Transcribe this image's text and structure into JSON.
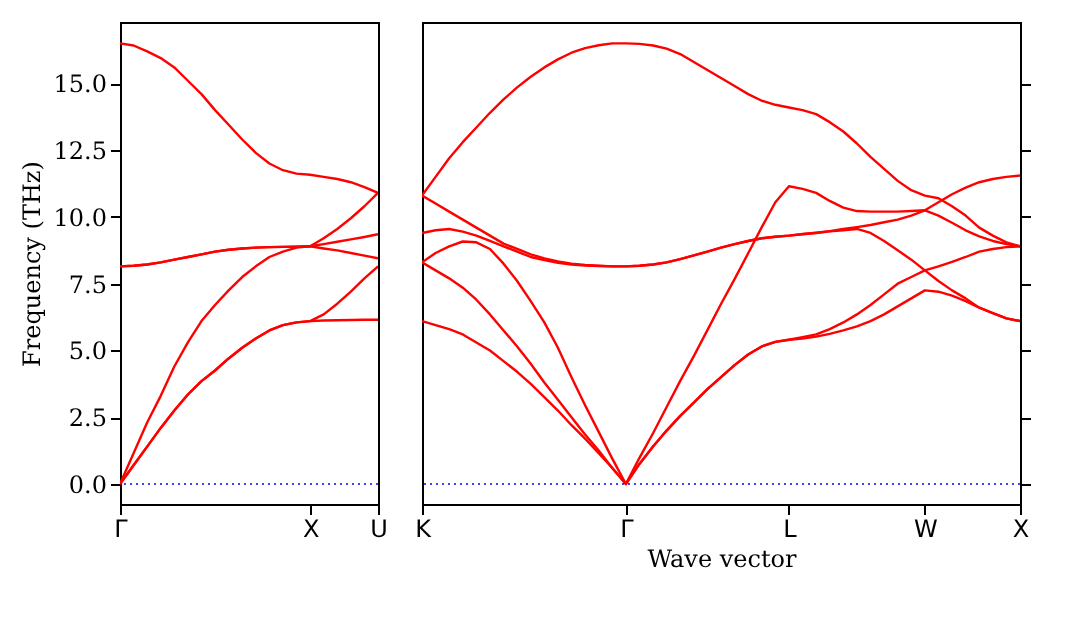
{
  "chart_data": [
    {
      "type": "line",
      "ylabel": "Frequency (THz)",
      "ylim": [
        -0.75,
        17.3
      ],
      "categories": [
        "Γ",
        null,
        null,
        null,
        null,
        null,
        null,
        null,
        null,
        null,
        null,
        null,
        null,
        null,
        "X",
        null,
        null,
        null,
        null,
        "U"
      ],
      "yticks": [
        {
          "value": 0,
          "label": "0.0"
        },
        {
          "value": 2.5,
          "label": "2.5"
        },
        {
          "value": 5,
          "label": "5.0"
        },
        {
          "value": 7.5,
          "label": "7.5"
        },
        {
          "value": 10,
          "label": "10.0"
        },
        {
          "value": 12.5,
          "label": "12.5"
        },
        {
          "value": 15,
          "label": "15.0"
        }
      ],
      "grid": false,
      "legend": false,
      "marker": "none",
      "line_style": "solid",
      "ref_lines": [
        {
          "axis": "y",
          "value": 0,
          "color": "#0000ff",
          "line_style": "dotted"
        }
      ],
      "series": [
        {
          "color": "#ff0000",
          "values": [
            0,
            0.7,
            1.4,
            2.1,
            2.75,
            3.35,
            3.85,
            4.25,
            4.7,
            5.1,
            5.45,
            5.75,
            5.95,
            6.05,
            6.1,
            6.12,
            6.13,
            6.14,
            6.15,
            6.15
          ]
        },
        {
          "color": "#ff0000",
          "values": [
            0,
            0.7,
            1.4,
            2.1,
            2.75,
            3.35,
            3.85,
            4.25,
            4.7,
            5.1,
            5.45,
            5.75,
            5.95,
            6.05,
            6.1,
            6.35,
            6.75,
            7.2,
            7.7,
            8.15
          ]
        },
        {
          "color": "#ff0000",
          "values": [
            0,
            1.15,
            2.3,
            3.3,
            4.4,
            5.3,
            6.1,
            6.7,
            7.25,
            7.75,
            8.15,
            8.5,
            8.7,
            8.85,
            8.9,
            8.82,
            8.75,
            8.65,
            8.55,
            8.45
          ]
        },
        {
          "color": "#ff0000",
          "values": [
            8.15,
            8.17,
            8.22,
            8.3,
            8.4,
            8.5,
            8.6,
            8.7,
            8.77,
            8.82,
            8.85,
            8.87,
            8.88,
            8.89,
            8.9,
            8.98,
            9.07,
            9.16,
            9.25,
            9.35
          ]
        },
        {
          "color": "#ff0000",
          "values": [
            8.15,
            8.17,
            8.22,
            8.3,
            8.4,
            8.5,
            8.6,
            8.7,
            8.77,
            8.82,
            8.85,
            8.87,
            8.88,
            8.89,
            8.9,
            9.2,
            9.55,
            9.95,
            10.4,
            10.9
          ]
        },
        {
          "color": "#ff0000",
          "values": [
            16.5,
            16.42,
            16.2,
            15.95,
            15.6,
            15.1,
            14.6,
            14.0,
            13.45,
            12.9,
            12.4,
            12.0,
            11.75,
            11.62,
            11.58,
            11.5,
            11.42,
            11.3,
            11.12,
            10.9
          ]
        }
      ]
    },
    {
      "type": "line",
      "xlabel": "Wave vector",
      "ylim": [
        -0.75,
        17.3
      ],
      "categories": [
        "K",
        null,
        null,
        null,
        null,
        null,
        null,
        null,
        null,
        null,
        null,
        null,
        null,
        null,
        null,
        "Γ",
        null,
        null,
        null,
        null,
        null,
        null,
        null,
        null,
        null,
        null,
        null,
        "L",
        null,
        null,
        null,
        null,
        null,
        null,
        null,
        null,
        null,
        "W",
        null,
        null,
        null,
        null,
        null,
        null,
        "X"
      ],
      "yticks": [
        0,
        2.5,
        5,
        7.5,
        10,
        12.5,
        15
      ],
      "tick_labels": "x",
      "grid": false,
      "legend": false,
      "marker": "none",
      "line_style": "solid",
      "ref_lines": [
        {
          "axis": "y",
          "value": 0,
          "color": "#0000ff",
          "line_style": "dotted"
        }
      ],
      "series": [
        {
          "color": "#ff0000",
          "values": [
            6.1,
            5.95,
            5.8,
            5.6,
            5.3,
            5.0,
            4.6,
            4.2,
            3.75,
            3.25,
            2.75,
            2.2,
            1.7,
            1.15,
            0.6,
            0,
            0.75,
            1.4,
            2.0,
            2.55,
            3.05,
            3.55,
            4.0,
            4.45,
            4.85,
            5.15,
            5.32,
            5.4,
            5.45,
            5.52,
            5.62,
            5.75,
            5.9,
            6.1,
            6.35,
            6.65,
            6.95,
            7.25,
            7.2,
            7.05,
            6.85,
            6.6,
            6.4,
            6.2,
            6.1
          ]
        },
        {
          "color": "#ff0000",
          "values": [
            8.3,
            8.0,
            7.7,
            7.35,
            6.9,
            6.35,
            5.75,
            5.15,
            4.5,
            3.8,
            3.15,
            2.5,
            1.85,
            1.25,
            0.6,
            0,
            0.75,
            1.4,
            2.0,
            2.55,
            3.05,
            3.55,
            4.0,
            4.45,
            4.85,
            5.15,
            5.32,
            5.4,
            5.5,
            5.6,
            5.8,
            6.05,
            6.35,
            6.7,
            7.1,
            7.5,
            7.75,
            8.0,
            8.15,
            8.32,
            8.5,
            8.7,
            8.8,
            8.87,
            8.9
          ]
        },
        {
          "color": "#ff0000",
          "values": [
            8.3,
            8.65,
            8.9,
            9.08,
            9.05,
            8.8,
            8.25,
            7.6,
            6.85,
            6.05,
            5.1,
            4.0,
            2.95,
            1.95,
            0.95,
            0,
            0.98,
            1.9,
            2.88,
            3.86,
            4.79,
            5.76,
            6.74,
            7.67,
            8.64,
            9.62,
            10.55,
            11.15,
            11.05,
            10.9,
            10.6,
            10.35,
            10.22,
            10.2,
            10.2,
            10.2,
            10.22,
            10.25,
            10.05,
            9.78,
            9.5,
            9.27,
            9.1,
            8.98,
            8.9
          ]
        },
        {
          "color": "#ff0000",
          "values": [
            9.4,
            9.5,
            9.55,
            9.45,
            9.3,
            9.1,
            8.9,
            8.7,
            8.5,
            8.38,
            8.28,
            8.22,
            8.18,
            8.16,
            8.15,
            8.15,
            8.17,
            8.22,
            8.3,
            8.42,
            8.56,
            8.7,
            8.85,
            8.98,
            9.1,
            9.2,
            9.26,
            9.3,
            9.35,
            9.4,
            9.46,
            9.5,
            9.55,
            9.4,
            9.1,
            8.75,
            8.4,
            8.0,
            7.6,
            7.25,
            6.95,
            6.6,
            6.4,
            6.2,
            6.1
          ]
        },
        {
          "color": "#ff0000",
          "values": [
            10.8,
            10.5,
            10.2,
            9.9,
            9.6,
            9.3,
            9.0,
            8.8,
            8.6,
            8.45,
            8.33,
            8.25,
            8.2,
            8.17,
            8.15,
            8.15,
            8.17,
            8.22,
            8.3,
            8.42,
            8.56,
            8.7,
            8.85,
            8.98,
            9.1,
            9.2,
            9.26,
            9.3,
            9.36,
            9.41,
            9.47,
            9.55,
            9.62,
            9.7,
            9.8,
            9.9,
            10.05,
            10.25,
            10.55,
            10.85,
            11.1,
            11.3,
            11.42,
            11.5,
            11.55
          ]
        },
        {
          "color": "#ff0000",
          "values": [
            10.8,
            11.5,
            12.2,
            12.8,
            13.35,
            13.9,
            14.4,
            14.85,
            15.25,
            15.6,
            15.9,
            16.15,
            16.32,
            16.43,
            16.5,
            16.5,
            16.48,
            16.42,
            16.3,
            16.1,
            15.8,
            15.5,
            15.2,
            14.9,
            14.6,
            14.35,
            14.2,
            14.1,
            14.0,
            13.85,
            13.55,
            13.2,
            12.75,
            12.25,
            11.8,
            11.35,
            11.0,
            10.8,
            10.7,
            10.4,
            10.05,
            9.6,
            9.3,
            9.05,
            8.9
          ]
        }
      ]
    }
  ]
}
